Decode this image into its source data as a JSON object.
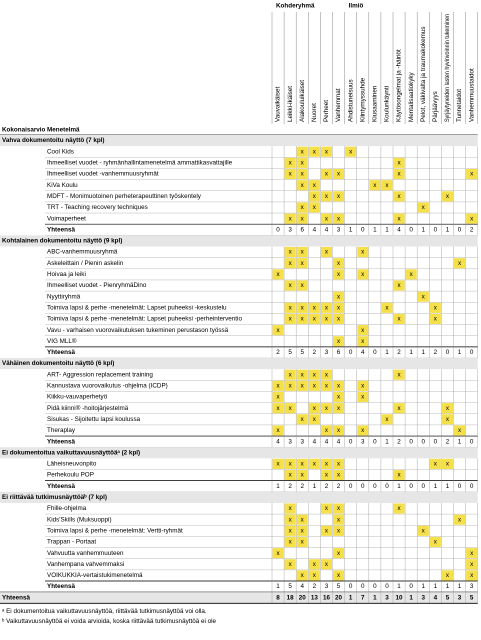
{
  "header": {
    "target_label": "Kohderyhmä",
    "phenomenon_label": "Ilmiö",
    "overall_label": "Kokonaisarvio",
    "method_label": "Menetelmä",
    "target_columns": [
      "Vauvaikäiset",
      "Leikki-ikäiset",
      "Alakouluikäiset",
      "Nuoret",
      "Perheet",
      "Vanhemmat"
    ],
    "phenomenon_columns": [
      "Ahdistuneisuus",
      "Kiintymyssuhde",
      "Kiusaaminen",
      "Koulunkäynti",
      "Käytösongelmat ja -häiriöt",
      "Mentalisaatiokyky",
      "Pelot, väkivalta ja traumakokemus",
      "Pärjäävyys",
      "Syrjäytyneiden lasten hyvinvoinnin tukeminen",
      "Tunnetaidot",
      "Vanhemmuustaidot"
    ]
  },
  "total_label": "Yhteensä",
  "groups": [
    {
      "title": "Vahva dokumentoitu näyttö (7 kpl)",
      "rows": [
        {
          "name": "Cool Kids",
          "cells": [
            null,
            null,
            "x",
            "x",
            "x",
            null,
            "x",
            null,
            null,
            null,
            null,
            null,
            null,
            null,
            null,
            null,
            null
          ]
        },
        {
          "name": "Ihmeelliset vuodet - ryhmänhallintamenetelmä ammattikasvattajille",
          "cells": [
            null,
            "x",
            "x",
            null,
            null,
            null,
            null,
            null,
            null,
            null,
            "x",
            null,
            null,
            null,
            null,
            null,
            null
          ]
        },
        {
          "name": "Ihmeelliset vuodet -vanhemmuusryhmät",
          "cells": [
            null,
            "x",
            "x",
            null,
            "x",
            "x",
            null,
            null,
            null,
            null,
            "x",
            null,
            null,
            null,
            null,
            null,
            "x"
          ]
        },
        {
          "name": "KiVa Koulu",
          "cells": [
            null,
            null,
            "x",
            "x",
            null,
            null,
            null,
            null,
            "x",
            "x",
            null,
            null,
            null,
            null,
            null,
            null,
            null
          ]
        },
        {
          "name": "MDFT - Monimuotoinen perheterapeuttinen työskentely",
          "cells": [
            null,
            null,
            null,
            "x",
            "x",
            "x",
            null,
            null,
            null,
            null,
            "x",
            null,
            null,
            null,
            "x",
            null,
            null
          ]
        },
        {
          "name": "TRT - Teaching recovery techniques",
          "cells": [
            null,
            null,
            "x",
            "x",
            null,
            null,
            null,
            null,
            null,
            null,
            null,
            null,
            "x",
            null,
            null,
            null,
            null
          ]
        },
        {
          "name": "Voimaperheet",
          "cells": [
            null,
            "x",
            "x",
            null,
            "x",
            "x",
            null,
            null,
            null,
            null,
            "x",
            null,
            null,
            null,
            null,
            null,
            "x"
          ]
        }
      ],
      "totals": [
        0,
        3,
        6,
        4,
        4,
        3,
        1,
        0,
        1,
        1,
        4,
        0,
        1,
        0,
        1,
        0,
        2
      ]
    },
    {
      "title": "Kohtalainen dokumentoitu näyttö (9 kpl)",
      "rows": [
        {
          "name": "ABC-vanhemmuusryhmä",
          "cells": [
            null,
            "x",
            "x",
            null,
            "x",
            null,
            null,
            "x",
            null,
            null,
            null,
            null,
            null,
            null,
            null,
            null,
            null
          ]
        },
        {
          "name": "Askeleittain / Pienin askelin",
          "cells": [
            null,
            "x",
            "x",
            null,
            null,
            "x",
            null,
            null,
            null,
            null,
            null,
            null,
            null,
            null,
            null,
            "x",
            null
          ]
        },
        {
          "name": "Hoivaa ja leiki",
          "cells": [
            "x",
            null,
            null,
            null,
            null,
            "x",
            null,
            "x",
            null,
            null,
            null,
            "x",
            null,
            null,
            null,
            null,
            null
          ]
        },
        {
          "name": "Ihmeelliset vuodet - PienryhmäDino",
          "cells": [
            null,
            "x",
            "x",
            null,
            null,
            null,
            null,
            null,
            null,
            null,
            "x",
            null,
            null,
            null,
            null,
            null,
            null
          ]
        },
        {
          "name": "Nyyttiryhmä",
          "cells": [
            null,
            null,
            null,
            null,
            null,
            "x",
            null,
            null,
            null,
            null,
            null,
            null,
            "x",
            null,
            null,
            null,
            null
          ]
        },
        {
          "name": "Toimiva lapsi & perhe -menetelmät: Lapset puheeksi -keskustelu",
          "cells": [
            null,
            "x",
            "x",
            "x",
            "x",
            "x",
            null,
            null,
            null,
            "x",
            null,
            null,
            null,
            "x",
            null,
            null,
            null
          ]
        },
        {
          "name": "Toimiva lapsi & perhe -menetelmät: Lapset puheeksi -perheinterventio",
          "cells": [
            null,
            "x",
            "x",
            "x",
            "x",
            "x",
            null,
            null,
            null,
            null,
            "x",
            null,
            null,
            "x",
            null,
            null,
            null
          ]
        },
        {
          "name": "Vavu - varhaisen vuorovaikutuksen tukeminen perustason työssä",
          "cells": [
            "x",
            null,
            null,
            null,
            null,
            null,
            null,
            "x",
            null,
            null,
            null,
            null,
            null,
            null,
            null,
            null,
            null
          ]
        },
        {
          "name": "VIG MLL®",
          "cells": [
            null,
            null,
            null,
            null,
            null,
            "x",
            null,
            "x",
            null,
            null,
            null,
            null,
            null,
            null,
            null,
            null,
            null
          ]
        }
      ],
      "totals": [
        2,
        5,
        5,
        2,
        3,
        6,
        0,
        4,
        0,
        1,
        2,
        1,
        1,
        2,
        0,
        1,
        0
      ]
    },
    {
      "title": "Vähäinen dokumentoitu näyttö (6 kpl)",
      "rows": [
        {
          "name": "ART- Aggression replacement training",
          "cells": [
            null,
            "x",
            "x",
            "x",
            "x",
            null,
            null,
            null,
            null,
            null,
            "x",
            null,
            null,
            null,
            null,
            null,
            null
          ]
        },
        {
          "name": "Kannustava vuorovaikutus -ohjelma (ICDP)",
          "cells": [
            "x",
            "x",
            "x",
            "x",
            "x",
            "x",
            null,
            "x",
            null,
            null,
            null,
            null,
            null,
            null,
            null,
            null,
            null
          ]
        },
        {
          "name": "Kiikku-vauvaperhetyö",
          "cells": [
            "x",
            null,
            null,
            null,
            null,
            "x",
            null,
            "x",
            null,
            null,
            null,
            null,
            null,
            null,
            null,
            null,
            null
          ]
        },
        {
          "name": "Pidä kiinni® -hoitojärjestelmä",
          "cells": [
            "x",
            "x",
            null,
            "x",
            "x",
            "x",
            null,
            null,
            null,
            null,
            "x",
            null,
            null,
            null,
            "x",
            null,
            null
          ]
        },
        {
          "name": "Sisukas - Sijoitettu lapsi koulussa",
          "cells": [
            null,
            null,
            "x",
            "x",
            null,
            null,
            null,
            null,
            null,
            "x",
            null,
            null,
            null,
            null,
            "x",
            null,
            null
          ]
        },
        {
          "name": "Theraplay",
          "cells": [
            "x",
            null,
            null,
            null,
            "x",
            "x",
            null,
            "x",
            null,
            null,
            null,
            null,
            null,
            null,
            null,
            "x",
            null
          ]
        }
      ],
      "totals": [
        4,
        3,
        3,
        4,
        4,
        4,
        0,
        3,
        0,
        1,
        2,
        0,
        0,
        0,
        2,
        1,
        0
      ]
    },
    {
      "title": "Ei dokumentoitua vaikuttavuusnäyttöäᵃ (2 kpl)",
      "rows": [
        {
          "name": "Läheisneuvonpito",
          "cells": [
            "x",
            "x",
            "x",
            "x",
            "x",
            "x",
            null,
            null,
            null,
            null,
            null,
            null,
            null,
            "x",
            "x",
            null,
            null
          ]
        },
        {
          "name": "Perhekoulu POP",
          "cells": [
            null,
            "x",
            "x",
            null,
            "x",
            "x",
            null,
            null,
            null,
            null,
            "x",
            null,
            null,
            null,
            null,
            null,
            null
          ]
        }
      ],
      "totals": [
        1,
        2,
        2,
        1,
        2,
        2,
        0,
        0,
        0,
        0,
        1,
        0,
        0,
        1,
        1,
        0,
        0
      ]
    },
    {
      "title": "Ei riittävää tutkimusnäyttöäᵇ (7 kpl)",
      "rows": [
        {
          "name": "Fhille-ohjelma",
          "cells": [
            null,
            "x",
            null,
            null,
            "x",
            "x",
            null,
            null,
            null,
            null,
            "x",
            null,
            null,
            null,
            null,
            null,
            null
          ]
        },
        {
          "name": "Kids'Skills (Muksuoppi)",
          "cells": [
            null,
            "x",
            "x",
            null,
            null,
            "x",
            null,
            null,
            null,
            null,
            null,
            null,
            null,
            null,
            null,
            "x",
            null
          ]
        },
        {
          "name": "Toimiva lapsi & perhe -menetelmät: Vertti-ryhmät",
          "cells": [
            null,
            "x",
            "x",
            null,
            "x",
            "x",
            null,
            null,
            null,
            null,
            null,
            null,
            "x",
            null,
            null,
            null,
            null
          ]
        },
        {
          "name": "Trappan - Portaat",
          "cells": [
            null,
            "x",
            "x",
            null,
            null,
            null,
            null,
            null,
            null,
            null,
            null,
            null,
            null,
            "x",
            null,
            null,
            null
          ]
        },
        {
          "name": "Vahvuutta vanhemmuuteen",
          "cells": [
            "x",
            null,
            null,
            null,
            null,
            "x",
            null,
            null,
            null,
            null,
            null,
            null,
            null,
            null,
            null,
            null,
            "x"
          ]
        },
        {
          "name": "Vanhempana vahvemmaksi",
          "cells": [
            null,
            "x",
            null,
            "x",
            "x",
            null,
            null,
            null,
            null,
            null,
            null,
            null,
            null,
            null,
            null,
            null,
            "x"
          ]
        },
        {
          "name": "VOIKUKKIA-vertaistukimenetelmä",
          "cells": [
            null,
            null,
            "x",
            "x",
            null,
            "x",
            null,
            null,
            null,
            null,
            null,
            null,
            null,
            null,
            "x",
            null,
            "x"
          ]
        }
      ],
      "totals": [
        1,
        5,
        4,
        2,
        3,
        5,
        0,
        0,
        0,
        0,
        1,
        0,
        1,
        1,
        1,
        1,
        3
      ]
    }
  ],
  "grand_total_label": "Yhteensä",
  "grand_totals": [
    8,
    18,
    20,
    13,
    16,
    20,
    1,
    7,
    1,
    3,
    10,
    1,
    3,
    4,
    5,
    3,
    5
  ],
  "footnotes": [
    "ᵃ Ei dokumentoitua vaikuttavuusnäyttöä, riittävää tutkimusnäyttöä voi olla.",
    "ᵇ Vaikuttavuusnäyttöä ei voida arvioida, koska riittävää tutkimusnäyttöä ei ole"
  ]
}
